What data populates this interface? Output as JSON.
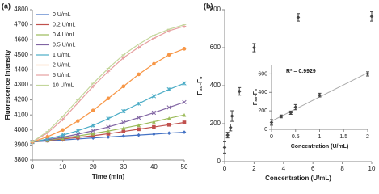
{
  "chart_data": [
    {
      "type": "line",
      "panel_label": "(a)",
      "x_label": "Time (min)",
      "y_label": "Fluorescence Intensity",
      "x": [
        0,
        5,
        10,
        15,
        20,
        25,
        30,
        35,
        40,
        45,
        50
      ],
      "xlim": [
        0,
        50
      ],
      "xticks": [
        0,
        10,
        20,
        30,
        40,
        50
      ],
      "ylim": [
        3800,
        4800
      ],
      "yticks": [
        3800,
        3900,
        4000,
        4100,
        4200,
        4300,
        4400,
        4500,
        4600,
        4700,
        4800
      ],
      "series": [
        {
          "name": "0 U/mL",
          "color": "#4472c4",
          "marker": "diamond",
          "values": [
            3920,
            3927,
            3933,
            3940,
            3947,
            3953,
            3960,
            3966,
            3972,
            3979,
            3985
          ]
        },
        {
          "name": "0.2 U/mL",
          "color": "#c0504d",
          "marker": "square",
          "values": [
            3920,
            3930,
            3940,
            3950,
            3962,
            3975,
            3990,
            4005,
            4020,
            4035,
            4050
          ]
        },
        {
          "name": "0.4 U/mL",
          "color": "#9bbb59",
          "marker": "triangle",
          "values": [
            3920,
            3932,
            3945,
            3960,
            3976,
            3993,
            4012,
            4032,
            4055,
            4078,
            4100
          ]
        },
        {
          "name": "0.5 U/mL",
          "color": "#8064a2",
          "marker": "cross",
          "values": [
            3920,
            3935,
            3952,
            3972,
            3995,
            4020,
            4050,
            4082,
            4115,
            4150,
            4185
          ]
        },
        {
          "name": "1 U/mL",
          "color": "#4bacc6",
          "marker": "star",
          "values": [
            3920,
            3940,
            3965,
            3995,
            4030,
            4075,
            4125,
            4175,
            4225,
            4270,
            4310
          ]
        },
        {
          "name": "2 U/mL",
          "color": "#f79646",
          "marker": "circle",
          "values": [
            3920,
            3955,
            4000,
            4060,
            4130,
            4210,
            4290,
            4370,
            4440,
            4500,
            4540
          ]
        },
        {
          "name": "5 U/mL",
          "color": "#e6a0a0",
          "marker": "plus",
          "values": [
            3920,
            3980,
            4070,
            4180,
            4290,
            4390,
            4480,
            4550,
            4610,
            4660,
            4690
          ]
        },
        {
          "name": "10 U/mL",
          "color": "#c3d69b",
          "marker": "dash",
          "values": [
            3920,
            3990,
            4090,
            4200,
            4310,
            4410,
            4500,
            4570,
            4630,
            4670,
            4700
          ]
        }
      ]
    },
    {
      "type": "scatter",
      "panel_label": "(b)",
      "x_label": "Concentration (U/mL)",
      "y_label": "F₃₀-F₀",
      "x": [
        0,
        0.2,
        0.4,
        0.5,
        1,
        2,
        5,
        10
      ],
      "values": [
        75,
        140,
        180,
        240,
        370,
        600,
        760,
        765
      ],
      "errors": [
        30,
        15,
        18,
        28,
        20,
        22,
        20,
        25
      ],
      "color": "#444",
      "xlim": [
        0,
        10
      ],
      "xticks": [
        0,
        2,
        4,
        6,
        8,
        10
      ],
      "ylim": [
        0,
        800
      ],
      "yticks": [
        0,
        200,
        400,
        600,
        800
      ]
    },
    {
      "type": "scatter",
      "x_label": "Concentration (U/mL)",
      "y_label": "F₃₀-F₀",
      "annotation": "R² = 0.9929",
      "x": [
        0,
        0.2,
        0.4,
        0.5,
        1,
        2
      ],
      "values": [
        75,
        140,
        180,
        240,
        370,
        600
      ],
      "errors": [
        30,
        15,
        18,
        28,
        20,
        22
      ],
      "color": "#444",
      "trendline": true,
      "xlim": [
        0,
        2
      ],
      "xticks": [
        0,
        0.5,
        1,
        1.5,
        2
      ],
      "ylim": [
        0,
        700
      ],
      "yticks": [
        0,
        200,
        400,
        600
      ]
    }
  ]
}
